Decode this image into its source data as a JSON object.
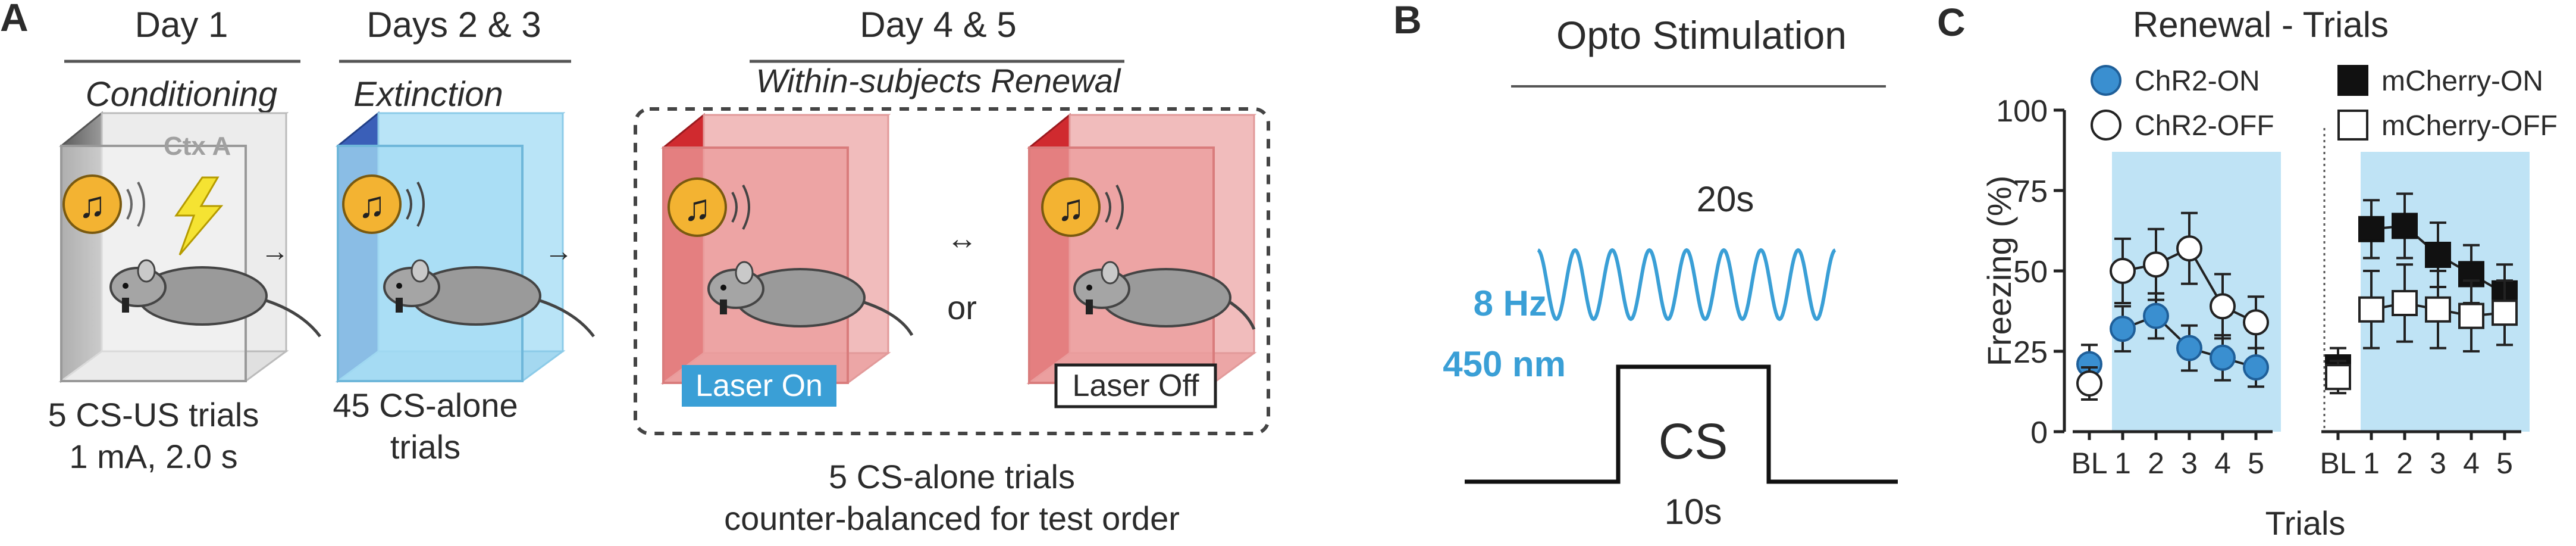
{
  "panel_labels": {
    "a": "A",
    "b": "B",
    "c": "C"
  },
  "panel_a": {
    "day1": {
      "title": "Day 1",
      "phase": "Conditioning",
      "context": "Ctx A",
      "desc_line1": "5 CS-US trials",
      "desc_line2": "1 mA, 2.0 s"
    },
    "day23": {
      "title": "Days 2 & 3",
      "phase": "Extinction",
      "desc_line1": "45 CS-alone",
      "desc_line2": "trials"
    },
    "day45": {
      "title": "Day 4 & 5",
      "phase": "Within-subjects Renewal",
      "or_text": "or",
      "laser_on": "Laser On",
      "laser_off": "Laser Off",
      "desc_line1": "5 CS-alone trials",
      "desc_line2": "counter-balanced for test order"
    }
  },
  "panel_b": {
    "title": "Opto Stimulation",
    "wave_duration": "20s",
    "frequency": "8 Hz",
    "wavelength": "450 nm",
    "cs_label": "CS",
    "cs_duration": "10s",
    "colors": {
      "light": "#3a9fd6"
    }
  },
  "chart_data": {
    "type": "line",
    "title": "Renewal - Trials",
    "ylabel": "Freezing (%)",
    "xlabel": "Trials",
    "ylim": [
      0,
      100
    ],
    "yticks": [
      0,
      25,
      50,
      75,
      100
    ],
    "categories": [
      "BL",
      "1",
      "2",
      "3",
      "4",
      "5"
    ],
    "shaded_trials": [
      "1",
      "2",
      "3",
      "4",
      "5"
    ],
    "shade_color": "#bfe3f5",
    "groups": [
      {
        "series": [
          {
            "name": "ChR2-ON",
            "values": [
              21,
              32,
              36,
              26,
              23,
              20
            ],
            "errors": [
              6,
              7,
              7,
              7,
              7,
              6
            ],
            "fill": "#3a8fd0",
            "stroke": "#1f5f99",
            "marker": "circle"
          },
          {
            "name": "ChR2-OFF",
            "values": [
              15,
              50,
              52,
              57,
              39,
              34
            ],
            "errors": [
              5,
              10,
              11,
              11,
              10,
              8
            ],
            "fill": "#ffffff",
            "stroke": "#222222",
            "marker": "circle"
          }
        ]
      },
      {
        "series": [
          {
            "name": "mCherry-ON",
            "values": [
              20,
              63,
              64,
              55,
              49,
              43
            ],
            "errors": [
              6,
              9,
              10,
              10,
              9,
              9
            ],
            "fill": "#111111",
            "stroke": "#111111",
            "marker": "square"
          },
          {
            "name": "mCherry-OFF",
            "values": [
              17,
              38,
              40,
              38,
              36,
              37
            ],
            "errors": [
              5,
              12,
              12,
              12,
              11,
              10
            ],
            "fill": "#ffffff",
            "stroke": "#222222",
            "marker": "square"
          }
        ]
      }
    ],
    "legend_position": "top"
  }
}
